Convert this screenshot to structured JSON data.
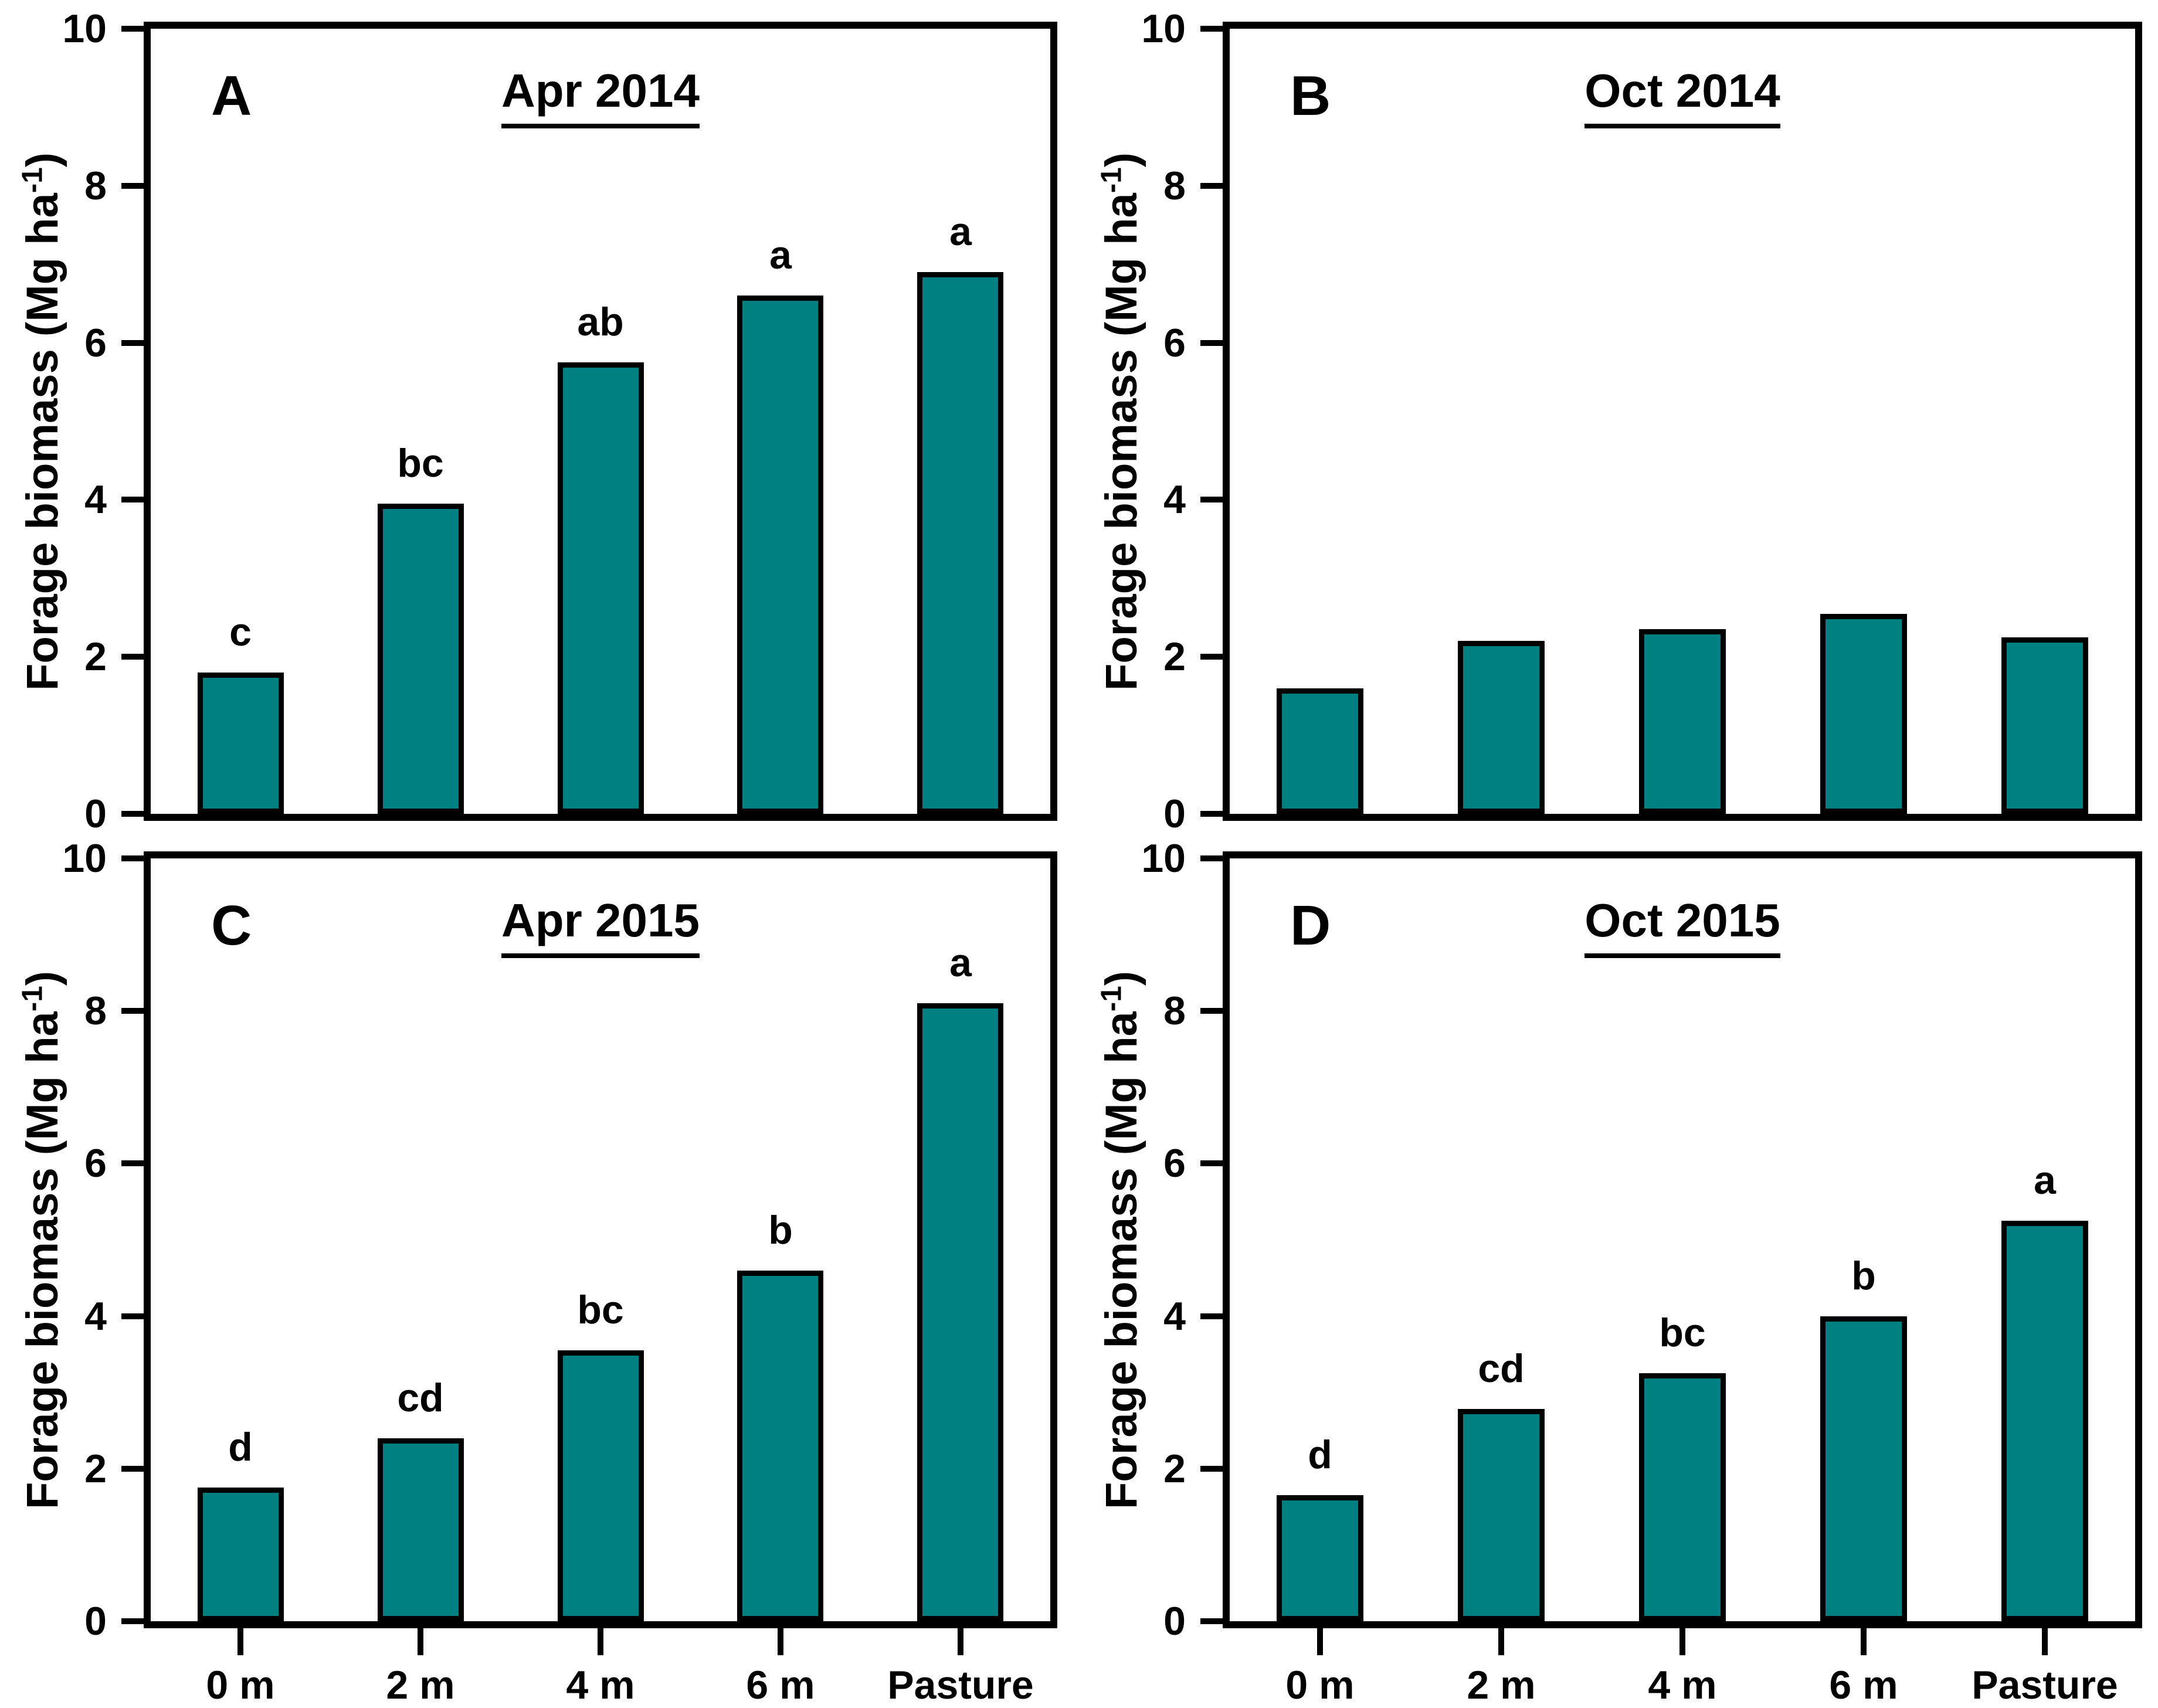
{
  "figure": {
    "categories": [
      "0 m",
      "2 m",
      "4 m",
      "6 m",
      "Pasture"
    ],
    "y_ticks": [
      "0",
      "2",
      "4",
      "6",
      "8",
      "10"
    ],
    "ylabel": {
      "pre": "Forage biomass (Mg ha",
      "sup": "-1",
      "post": ")"
    },
    "colors": {
      "bar_fill": "#008080",
      "bar_border": "#000000",
      "axis": "#000000",
      "background": "#ffffff"
    },
    "panels": [
      {
        "id": "A",
        "letter": "A",
        "title": "Apr 2014",
        "values": [
          1.8,
          3.95,
          5.75,
          6.6,
          6.9
        ],
        "sig_letters": [
          "c",
          "bc",
          "ab",
          "a",
          "a"
        ],
        "x_labels": false
      },
      {
        "id": "B",
        "letter": "B",
        "title": "Oct 2014",
        "values": [
          1.6,
          2.2,
          2.35,
          2.55,
          2.25
        ],
        "sig_letters": [
          "",
          "",
          "",
          "",
          ""
        ],
        "x_labels": false
      },
      {
        "id": "C",
        "letter": "C",
        "title": "Apr 2015",
        "values": [
          1.75,
          2.4,
          3.55,
          4.6,
          8.1
        ],
        "sig_letters": [
          "d",
          "cd",
          "bc",
          "b",
          "a"
        ],
        "x_labels": true
      },
      {
        "id": "D",
        "letter": "D",
        "title": "Oct 2015",
        "values": [
          1.65,
          2.78,
          3.25,
          4.0,
          5.25
        ],
        "sig_letters": [
          "d",
          "cd",
          "bc",
          "b",
          "a"
        ],
        "x_labels": true
      }
    ]
  },
  "chart_data": [
    {
      "type": "bar",
      "title": "Apr 2014",
      "panel": "A",
      "categories": [
        "0 m",
        "2 m",
        "4 m",
        "6 m",
        "Pasture"
      ],
      "values": [
        1.8,
        3.95,
        5.75,
        6.6,
        6.9
      ],
      "annotations": [
        "c",
        "bc",
        "ab",
        "a",
        "a"
      ],
      "xlabel": "",
      "ylabel": "Forage biomass (Mg ha-1)",
      "ylim": [
        0,
        10
      ],
      "grid": false,
      "legend": "none"
    },
    {
      "type": "bar",
      "title": "Oct 2014",
      "panel": "B",
      "categories": [
        "0 m",
        "2 m",
        "4 m",
        "6 m",
        "Pasture"
      ],
      "values": [
        1.6,
        2.2,
        2.35,
        2.55,
        2.25
      ],
      "annotations": [
        "",
        "",
        "",
        "",
        ""
      ],
      "xlabel": "",
      "ylabel": "Forage biomass (Mg ha-1)",
      "ylim": [
        0,
        10
      ],
      "grid": false,
      "legend": "none"
    },
    {
      "type": "bar",
      "title": "Apr 2015",
      "panel": "C",
      "categories": [
        "0 m",
        "2 m",
        "4 m",
        "6 m",
        "Pasture"
      ],
      "values": [
        1.75,
        2.4,
        3.55,
        4.6,
        8.1
      ],
      "annotations": [
        "d",
        "cd",
        "bc",
        "b",
        "a"
      ],
      "xlabel": "",
      "ylabel": "Forage biomass (Mg ha-1)",
      "ylim": [
        0,
        10
      ],
      "grid": false,
      "legend": "none"
    },
    {
      "type": "bar",
      "title": "Oct 2015",
      "panel": "D",
      "categories": [
        "0 m",
        "2 m",
        "4 m",
        "6 m",
        "Pasture"
      ],
      "values": [
        1.65,
        2.78,
        3.25,
        4.0,
        5.25
      ],
      "annotations": [
        "d",
        "cd",
        "bc",
        "b",
        "a"
      ],
      "xlabel": "",
      "ylabel": "Forage biomass (Mg ha-1)",
      "ylim": [
        0,
        10
      ],
      "grid": false,
      "legend": "none"
    }
  ]
}
